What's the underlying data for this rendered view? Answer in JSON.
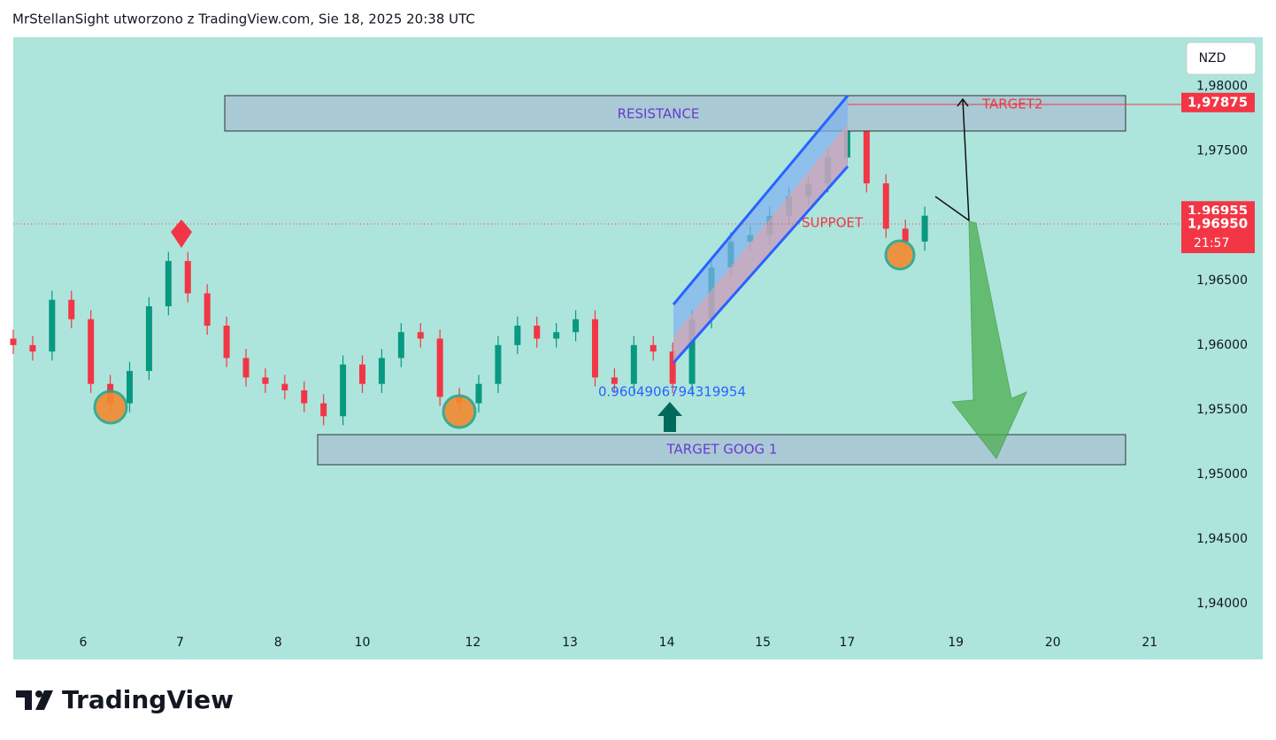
{
  "header": "MrStellanSight utworzono z TradingView.com, Sie 18, 2025 20:38 UTC",
  "logo": "TradingView",
  "chart_data": {
    "type": "candlestick",
    "currency": "NZD",
    "x": [
      0,
      2,
      4,
      6,
      8,
      10,
      12,
      14,
      16,
      18,
      20,
      22,
      24,
      26,
      28,
      30,
      32,
      34,
      36,
      38,
      40,
      42,
      44,
      46,
      48,
      50,
      52,
      54,
      56,
      58,
      60,
      62,
      64,
      66,
      68,
      70,
      72,
      74,
      76,
      78,
      80,
      82,
      84,
      86,
      88,
      90,
      92,
      94
    ],
    "open": [
      1.9605,
      1.96,
      1.9595,
      1.9635,
      1.962,
      1.957,
      1.9555,
      1.958,
      1.963,
      1.9665,
      1.964,
      1.9615,
      1.959,
      1.9575,
      1.957,
      1.9565,
      1.9555,
      1.9545,
      1.9585,
      1.957,
      1.959,
      1.961,
      1.9605,
      1.956,
      1.9555,
      1.957,
      1.96,
      1.9615,
      1.9605,
      1.961,
      1.962,
      1.9575,
      1.957,
      1.96,
      1.9595,
      1.957,
      1.962,
      1.966,
      1.968,
      1.9685,
      1.97,
      1.9715,
      1.9725,
      1.9745,
      1.978,
      1.9725,
      1.969,
      1.968
    ],
    "high": [
      1.9612,
      1.9607,
      1.9642,
      1.9642,
      1.9627,
      1.9577,
      1.9587,
      1.9637,
      1.9672,
      1.9672,
      1.9647,
      1.9622,
      1.9597,
      1.9582,
      1.9577,
      1.9572,
      1.9562,
      1.9592,
      1.9592,
      1.9597,
      1.9617,
      1.9617,
      1.9612,
      1.9567,
      1.9577,
      1.9607,
      1.9622,
      1.9622,
      1.9617,
      1.9627,
      1.9627,
      1.9582,
      1.9607,
      1.9607,
      1.9602,
      1.9627,
      1.9667,
      1.9687,
      1.9692,
      1.9707,
      1.9722,
      1.9732,
      1.9752,
      1.9787,
      1.9787,
      1.9732,
      1.9697,
      1.9707
    ],
    "low": [
      1.9593,
      1.9588,
      1.9588,
      1.9613,
      1.9563,
      1.9548,
      1.9548,
      1.9573,
      1.9623,
      1.9633,
      1.9608,
      1.9583,
      1.9568,
      1.9563,
      1.9558,
      1.9548,
      1.9538,
      1.9538,
      1.9563,
      1.9563,
      1.9583,
      1.9598,
      1.9553,
      1.9548,
      1.9548,
      1.9563,
      1.9593,
      1.9598,
      1.9598,
      1.9603,
      1.9568,
      1.9563,
      1.9563,
      1.9588,
      1.9563,
      1.9563,
      1.9613,
      1.9653,
      1.9673,
      1.9678,
      1.9693,
      1.9708,
      1.9718,
      1.9738,
      1.9718,
      1.9683,
      1.9673,
      1.9673
    ],
    "close": [
      1.96,
      1.9595,
      1.9635,
      1.962,
      1.957,
      1.9555,
      1.958,
      1.963,
      1.9665,
      1.964,
      1.9615,
      1.959,
      1.9575,
      1.957,
      1.9565,
      1.9555,
      1.9545,
      1.9585,
      1.957,
      1.959,
      1.961,
      1.9605,
      1.956,
      1.9555,
      1.957,
      1.96,
      1.9615,
      1.9605,
      1.961,
      1.962,
      1.9575,
      1.957,
      1.96,
      1.9595,
      1.957,
      1.962,
      1.966,
      1.968,
      1.9685,
      1.97,
      1.9715,
      1.9725,
      1.9745,
      1.978,
      1.9725,
      1.969,
      1.968,
      1.97
    ],
    "up_color": "#089981",
    "down_color": "#f23645",
    "xlim": [
      0,
      120
    ],
    "xticks": [
      {
        "value": 7.2,
        "label": "6"
      },
      {
        "value": 17.2,
        "label": "7"
      },
      {
        "value": 27.3,
        "label": "8"
      },
      {
        "value": 36.0,
        "label": "10"
      },
      {
        "value": 47.4,
        "label": "12"
      },
      {
        "value": 57.4,
        "label": "13"
      },
      {
        "value": 67.4,
        "label": "14"
      },
      {
        "value": 77.3,
        "label": "15"
      },
      {
        "value": 86.0,
        "label": "17"
      },
      {
        "value": 97.2,
        "label": "19"
      },
      {
        "value": 107.2,
        "label": "20"
      },
      {
        "value": 117.2,
        "label": "21"
      }
    ],
    "ylim": [
      1.9357,
      1.9838
    ],
    "yticks": [
      {
        "value": 1.98,
        "label": "1,98000"
      },
      {
        "value": 1.975,
        "label": "1,97500"
      },
      {
        "value": 1.965,
        "label": "1,96500"
      },
      {
        "value": 1.96,
        "label": "1,96000"
      },
      {
        "value": 1.955,
        "label": "1,95500"
      },
      {
        "value": 1.95,
        "label": "1,95000"
      },
      {
        "value": 1.945,
        "label": "1,94500"
      },
      {
        "value": 1.94,
        "label": "1,94000"
      }
    ],
    "price_tags": [
      {
        "value": 1.97875,
        "label": "1,97875"
      },
      {
        "value": 1.96955,
        "label": "1,96955"
      },
      {
        "value": 1.9695,
        "label": "1,96950"
      }
    ],
    "countdown": "21:57",
    "annotations": {
      "resistance": "RESISTANCE",
      "target2": "TARGET2",
      "support": "SUPPOET",
      "target1": "TARGET GOOG  1",
      "fib": "0.9604906794319954"
    }
  }
}
